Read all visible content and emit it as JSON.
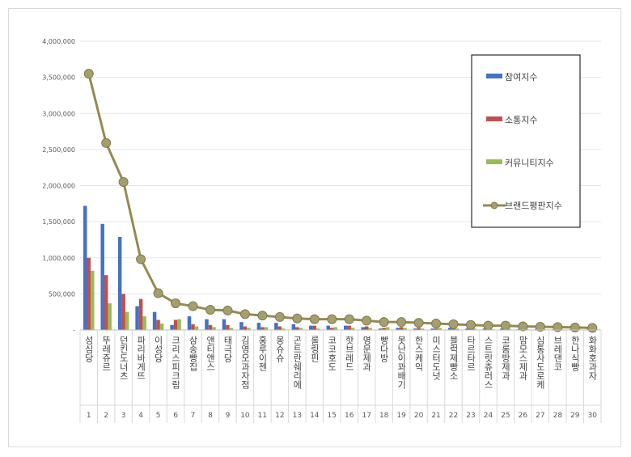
{
  "chart_data": {
    "type": "bar",
    "categories": [
      "성심당",
      "뚜레쥬르",
      "던킨도너츠",
      "파리바게뜨",
      "이성당",
      "크리스피크림",
      "삼송빵집",
      "앤티앤스",
      "태극당",
      "김영모과자점",
      "홍루이젠",
      "몽슈슈",
      "곤트란쉐리에",
      "롤링핀",
      "코코호도",
      "핫브레드",
      "명문제과",
      "빵다방",
      "못난이꽈배기",
      "한스케익",
      "미스터도넛",
      "블럭제빵소",
      "타르타르",
      "스트릿츄러스",
      "코롬방제과",
      "맘모스제과",
      "심통사도로케",
      "브레댄코",
      "한나식빵",
      "화화호과자"
    ],
    "ranks": [
      "1",
      "2",
      "3",
      "4",
      "5",
      "6",
      "7",
      "8",
      "9",
      "10",
      "11",
      "12",
      "13",
      "14",
      "15",
      "16",
      "17",
      "18",
      "19",
      "20",
      "21",
      "22",
      "23",
      "24",
      "25",
      "26",
      "27",
      "28",
      "29",
      "30"
    ],
    "y_ticks": [
      "-",
      "500,000",
      "1,000,000",
      "1,500,000",
      "2,000,000",
      "2,500,000",
      "3,000,000",
      "3,500,000",
      "4,000,000"
    ],
    "ylim": [
      0,
      4000000
    ],
    "grid": true,
    "legend_position": "right",
    "series": [
      {
        "name": "참여지수",
        "type": "bar",
        "color": "#4472c4",
        "values": [
          1720000,
          1470000,
          1290000,
          330000,
          250000,
          70000,
          190000,
          150000,
          150000,
          110000,
          100000,
          100000,
          80000,
          60000,
          60000,
          60000,
          40000,
          20000,
          30000,
          20000,
          20000,
          30000,
          20000,
          20000,
          20000,
          15000,
          15000,
          10000,
          10000,
          15000
        ]
      },
      {
        "name": "소통지수",
        "type": "bar",
        "color": "#c0504d",
        "values": [
          1000000,
          760000,
          500000,
          430000,
          140000,
          140000,
          80000,
          70000,
          70000,
          50000,
          40000,
          50000,
          40000,
          60000,
          30000,
          60000,
          50000,
          30000,
          40000,
          30000,
          20000,
          20000,
          20000,
          20000,
          20000,
          15000,
          15000,
          15000,
          10000,
          10000
        ]
      },
      {
        "name": "커뮤니티지수",
        "type": "bar",
        "color": "#9bbb59",
        "values": [
          820000,
          370000,
          250000,
          190000,
          90000,
          150000,
          50000,
          40000,
          30000,
          30000,
          40000,
          20000,
          30000,
          20000,
          40000,
          30000,
          30000,
          40000,
          30000,
          20000,
          30000,
          20000,
          20000,
          10000,
          15000,
          15000,
          10000,
          10000,
          10000,
          10000
        ]
      },
      {
        "name": "브랜드평판지수",
        "type": "line",
        "color": "#948a54",
        "values": [
          3550000,
          2590000,
          2050000,
          980000,
          510000,
          370000,
          330000,
          280000,
          270000,
          220000,
          200000,
          180000,
          160000,
          150000,
          150000,
          150000,
          130000,
          110000,
          110000,
          100000,
          90000,
          80000,
          70000,
          60000,
          60000,
          50000,
          45000,
          40000,
          35000,
          30000
        ]
      }
    ]
  }
}
